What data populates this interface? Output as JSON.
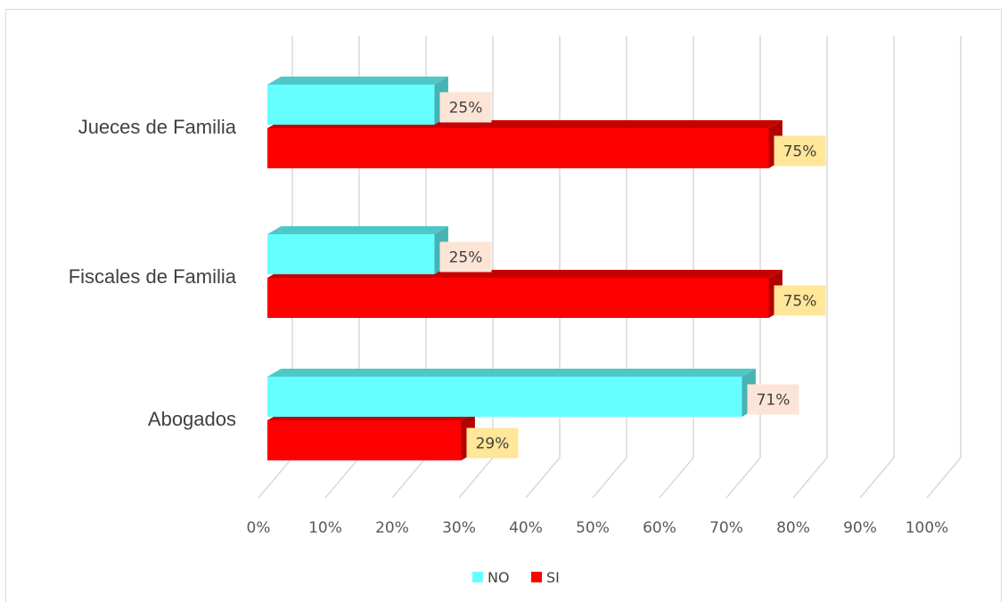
{
  "chart_data": {
    "type": "bar",
    "orientation": "horizontal",
    "style": "3d-clustered",
    "categories": [
      "Abogados",
      "Fiscales de Familia",
      "Jueces de Familia"
    ],
    "series": [
      {
        "name": "NO",
        "values": [
          0.71,
          0.25,
          0.25
        ],
        "labels": [
          "71%",
          "25%",
          "25%"
        ],
        "color": "#66FFFF",
        "label_bg": "#FCE4D6"
      },
      {
        "name": "SI",
        "values": [
          0.29,
          0.75,
          0.75
        ],
        "labels": [
          "29%",
          "75%",
          "75%"
        ],
        "color": "#FF0000",
        "label_bg": "#FFE699"
      }
    ],
    "xlim": [
      0,
      1
    ],
    "x_ticks": [
      "0%",
      "10%",
      "20%",
      "30%",
      "40%",
      "50%",
      "60%",
      "70%",
      "80%",
      "90%",
      "100%"
    ],
    "grid": true,
    "legend_position": "bottom"
  }
}
